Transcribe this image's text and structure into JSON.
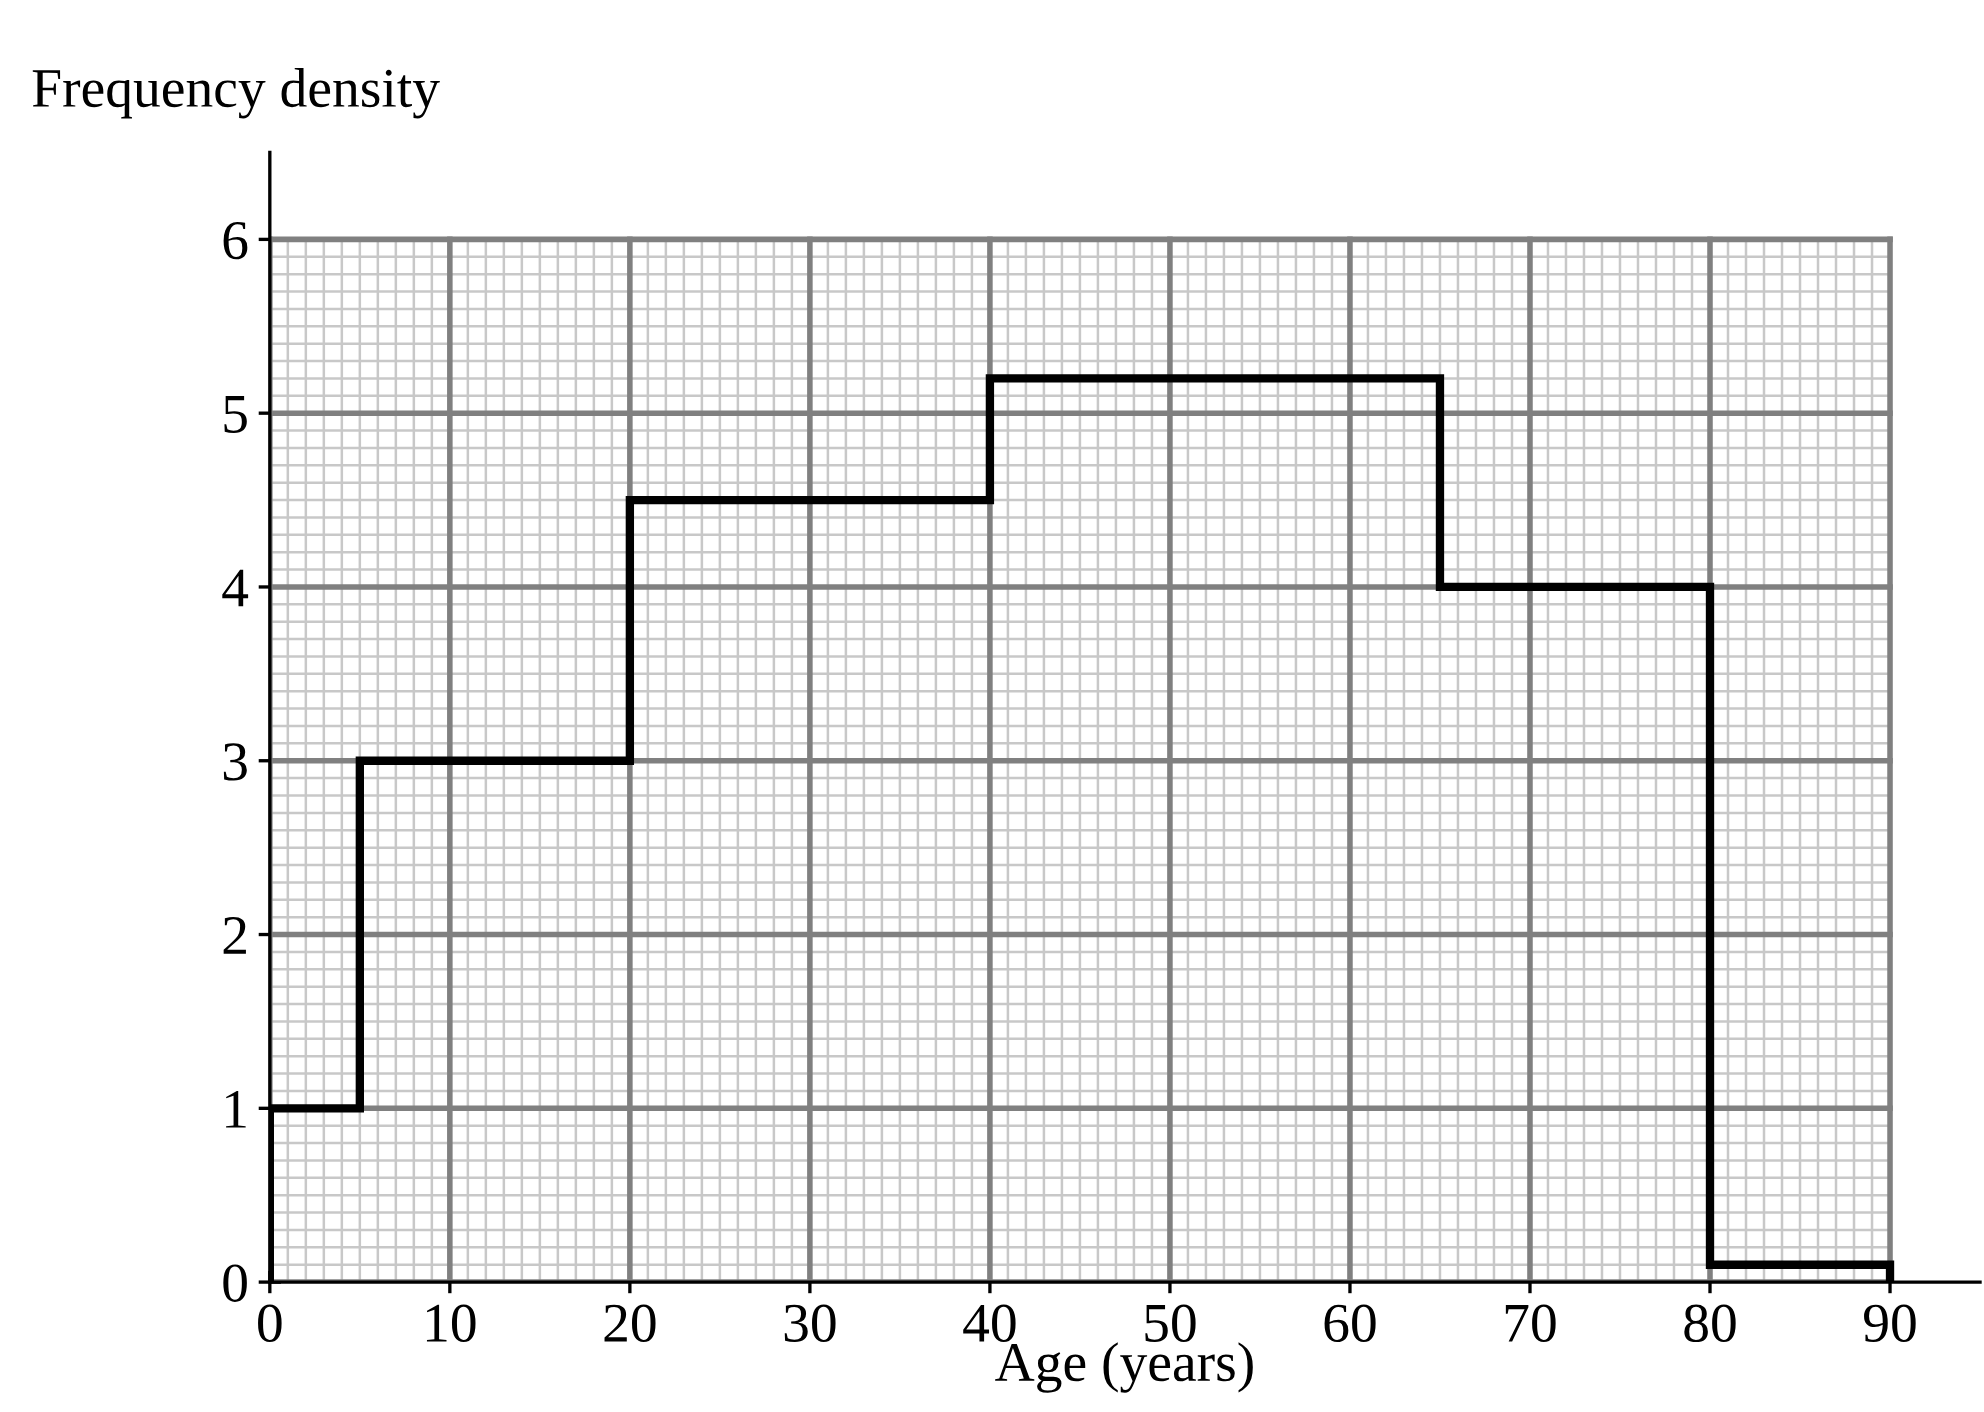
{
  "chart_data": {
    "type": "histogram",
    "xlabel": "Age (years)",
    "ylabel": "Frequency density",
    "bins": [
      0,
      5,
      20,
      40,
      65,
      80,
      90
    ],
    "values": [
      1,
      3,
      4.5,
      5.2,
      4,
      0.1
    ],
    "color": "#000000",
    "xlim": [
      0,
      95
    ],
    "ylim": [
      0,
      6.5
    ],
    "xticks": [
      0,
      10,
      20,
      30,
      40,
      50,
      60,
      70,
      80,
      90
    ],
    "yticks": [
      0,
      1,
      2,
      3,
      4,
      5,
      6
    ],
    "grid": true,
    "legend": false
  }
}
